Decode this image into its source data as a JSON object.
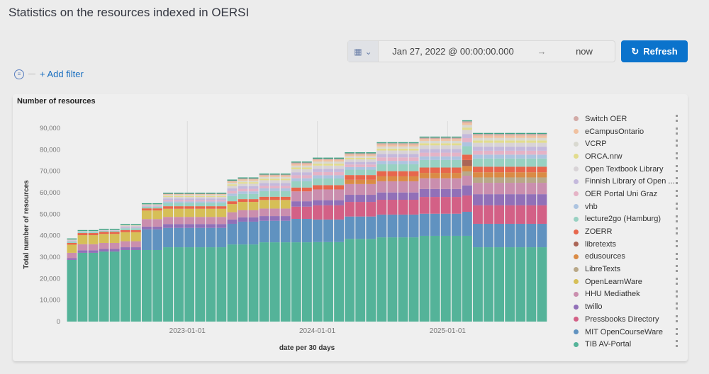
{
  "page": {
    "title": "Statistics on the resources indexed in OERSI"
  },
  "timepicker": {
    "start": "Jan 27, 2022 @ 00:00:00.000",
    "arrow": "→",
    "end": "now",
    "refresh_label": "Refresh",
    "calendar_icon": "calendar-icon",
    "chevron_icon": "chevron-down-icon"
  },
  "filter": {
    "add_label": "+ Add filter"
  },
  "panel": {
    "title": "Number of resources"
  },
  "chart_data": {
    "type": "bar",
    "stacked": true,
    "title": "Number of resources",
    "xlabel": "date per 30 days",
    "ylabel": "Total number of resources",
    "ylim": [
      0,
      90000
    ],
    "y_ticks": [
      0,
      10000,
      20000,
      30000,
      40000,
      50000,
      60000,
      70000,
      80000,
      90000
    ],
    "y_tick_labels": [
      "0",
      "10,000",
      "20,000",
      "30,000",
      "40,000",
      "50,000",
      "60,000",
      "70,000",
      "80,000",
      "90,000"
    ],
    "x_ticks": [
      "2023-01-01",
      "2024-01-01",
      "2025-01-01"
    ],
    "x_interval": "30 days",
    "x_start": "2022-01-27",
    "grid": "vertical at x ticks",
    "legend": "right",
    "series": [
      {
        "name": "TIB AV-Portal",
        "color": "#54b399",
        "values": [
          28700,
          32000,
          32000,
          32600,
          32600,
          33300,
          33300,
          33300,
          33300,
          34600,
          34600,
          34600,
          34600,
          34600,
          34600,
          35900,
          35900,
          35900,
          36900,
          36900,
          36900,
          36900,
          36900,
          37000,
          37000,
          37000,
          38500,
          38500,
          38500,
          39200,
          39200,
          39200,
          39200,
          39900,
          39900,
          39900,
          39900,
          39900,
          34600,
          34600,
          34600,
          34600,
          34600,
          34600,
          34600
        ]
      },
      {
        "name": "MIT OpenCourseWare",
        "color": "#6092c0",
        "values": [
          0,
          0,
          0,
          0,
          0,
          0,
          0,
          9600,
          9600,
          9000,
          9000,
          9000,
          9000,
          9000,
          9000,
          9600,
          10600,
          10600,
          10000,
          10000,
          10000,
          10900,
          10900,
          10500,
          10500,
          10500,
          10400,
          10400,
          10400,
          10600,
          10600,
          10600,
          10600,
          10300,
          10300,
          10300,
          10300,
          11200,
          10900,
          10900,
          10900,
          10900,
          10900,
          10900,
          10900
        ]
      },
      {
        "name": "Pressbooks Directory",
        "color": "#d36086",
        "values": [
          0,
          0,
          0,
          0,
          0,
          0,
          0,
          0,
          0,
          0,
          0,
          0,
          0,
          0,
          0,
          0,
          0,
          0,
          0,
          0,
          0,
          5700,
          5700,
          6600,
          6600,
          6600,
          6800,
          6800,
          6800,
          6900,
          6900,
          6900,
          6900,
          7800,
          7800,
          7800,
          7800,
          7600,
          8600,
          8600,
          8600,
          8600,
          8600,
          8600,
          8600
        ]
      },
      {
        "name": "twillo",
        "color": "#9170b8",
        "values": [
          800,
          1200,
          1200,
          1200,
          1200,
          1300,
          1300,
          1300,
          1300,
          1800,
          1800,
          1800,
          1800,
          1800,
          1800,
          2000,
          2000,
          2000,
          2200,
          2200,
          2200,
          2500,
          2500,
          2400,
          2400,
          2400,
          3300,
          3300,
          3300,
          3400,
          3400,
          3400,
          3400,
          3700,
          3700,
          3700,
          3700,
          4700,
          5200,
          5200,
          5200,
          5200,
          5200,
          5200,
          5200
        ]
      },
      {
        "name": "HHU Mediathek",
        "color": "#ca8eae",
        "values": [
          2500,
          2800,
          2800,
          2800,
          2800,
          2800,
          2800,
          3500,
          3500,
          3300,
          3300,
          3300,
          3300,
          3300,
          3300,
          3400,
          3400,
          3400,
          3500,
          3500,
          3500,
          4600,
          4600,
          5000,
          5000,
          5000,
          5000,
          5000,
          5000,
          5200,
          5200,
          5200,
          5200,
          5000,
          5000,
          5000,
          5000,
          4500,
          5300,
          5300,
          5300,
          5300,
          5300,
          5300,
          5300
        ]
      },
      {
        "name": "OpenLearnWare",
        "color": "#d6bf57",
        "values": [
          3800,
          4200,
          4200,
          4200,
          4200,
          4200,
          4200,
          4000,
          4000,
          3800,
          3800,
          3800,
          3800,
          3800,
          3800,
          3800,
          3800,
          3800,
          4000,
          4000,
          4000,
          0,
          0,
          0,
          0,
          0,
          0,
          0,
          0,
          0,
          0,
          0,
          0,
          0,
          0,
          0,
          0,
          0,
          0,
          0,
          0,
          0,
          0,
          0,
          0
        ]
      },
      {
        "name": "LibreTexts",
        "color": "#b9a888",
        "values": [
          0,
          0,
          0,
          0,
          0,
          0,
          0,
          0,
          0,
          0,
          0,
          0,
          0,
          0,
          0,
          0,
          0,
          0,
          0,
          0,
          0,
          0,
          0,
          0,
          0,
          0,
          0,
          0,
          0,
          0,
          0,
          0,
          0,
          0,
          0,
          0,
          0,
          2000,
          2500,
          2500,
          2500,
          2500,
          2500,
          2500,
          2500
        ]
      },
      {
        "name": "edusources",
        "color": "#da8b45",
        "values": [
          0,
          0,
          0,
          0,
          0,
          0,
          0,
          0,
          0,
          0,
          0,
          0,
          0,
          0,
          0,
          0,
          0,
          0,
          0,
          0,
          0,
          0,
          0,
          0,
          0,
          0,
          2000,
          2000,
          2000,
          2300,
          2300,
          2300,
          2300,
          2500,
          2500,
          2500,
          2500,
          2500,
          2400,
          2400,
          2400,
          2400,
          2400,
          2400,
          2400
        ]
      },
      {
        "name": "libretexts",
        "color": "#aa6556",
        "values": [
          0,
          0,
          0,
          0,
          0,
          0,
          0,
          0,
          0,
          0,
          0,
          0,
          0,
          0,
          0,
          0,
          0,
          0,
          0,
          0,
          0,
          0,
          0,
          0,
          0,
          0,
          0,
          0,
          0,
          0,
          0,
          0,
          0,
          0,
          0,
          0,
          0,
          2800,
          0,
          0,
          0,
          0,
          0,
          0,
          0
        ]
      },
      {
        "name": "ZOERR",
        "color": "#e7664c",
        "values": [
          800,
          1000,
          1000,
          1000,
          1000,
          1000,
          1000,
          1000,
          1000,
          1200,
          1200,
          1200,
          1200,
          1200,
          1200,
          1300,
          1300,
          1300,
          1500,
          1500,
          1500,
          1800,
          1800,
          2000,
          2000,
          2000,
          2200,
          2200,
          2200,
          2400,
          2400,
          2400,
          2400,
          2500,
          2500,
          2500,
          2500,
          2500,
          2600,
          2600,
          2600,
          2600,
          2600,
          2600,
          2600
        ]
      },
      {
        "name": "lecture2go (Hamburg)",
        "color": "#98d1c2",
        "values": [
          600,
          400,
          400,
          400,
          400,
          800,
          800,
          700,
          700,
          1500,
          1500,
          1500,
          1500,
          1500,
          1500,
          2400,
          2400,
          2400,
          2600,
          2600,
          2600,
          2900,
          2900,
          3100,
          3100,
          3100,
          2500,
          2500,
          2500,
          3200,
          3200,
          3200,
          3200,
          3500,
          3500,
          3500,
          3500,
          3900,
          3800,
          3800,
          3800,
          3800,
          3800,
          3800,
          3800
        ]
      },
      {
        "name": "vhb",
        "color": "#adc4e0",
        "values": [
          200,
          100,
          100,
          100,
          100,
          300,
          300,
          200,
          200,
          700,
          700,
          700,
          700,
          700,
          700,
          1200,
          1200,
          1200,
          1300,
          1300,
          1300,
          1400,
          1400,
          1500,
          1500,
          1500,
          1200,
          1200,
          1200,
          1600,
          1600,
          1600,
          1600,
          1700,
          1700,
          1700,
          1700,
          1900,
          1800,
          1800,
          1800,
          1800,
          1800,
          1800,
          1800
        ]
      },
      {
        "name": "OER Portal Uni Graz",
        "color": "#e5b3c6",
        "values": [
          200,
          100,
          100,
          100,
          100,
          300,
          300,
          300,
          300,
          700,
          700,
          700,
          700,
          700,
          700,
          1200,
          1200,
          1200,
          1200,
          1200,
          1200,
          1400,
          1400,
          1500,
          1500,
          1500,
          1200,
          1200,
          1200,
          1600,
          1600,
          1600,
          1600,
          1700,
          1700,
          1700,
          1700,
          1900,
          1800,
          1800,
          1800,
          1800,
          1800,
          1800,
          1800
        ]
      },
      {
        "name": "Finnish Library of Open ...",
        "color": "#c4b9dc",
        "values": [
          200,
          100,
          100,
          100,
          100,
          300,
          300,
          200,
          200,
          700,
          700,
          700,
          700,
          700,
          700,
          1200,
          1200,
          1200,
          1300,
          1300,
          1300,
          1400,
          1400,
          1500,
          1500,
          1500,
          1200,
          1200,
          1200,
          1600,
          1600,
          1600,
          1600,
          1700,
          1700,
          1700,
          1700,
          1900,
          1900,
          1900,
          1900,
          1900,
          1900,
          1900,
          1900
        ]
      },
      {
        "name": "Open Textbook Library",
        "color": "#d8d3d6",
        "values": [
          200,
          100,
          100,
          100,
          100,
          300,
          300,
          200,
          200,
          700,
          700,
          700,
          700,
          700,
          700,
          1200,
          1200,
          1200,
          1300,
          1300,
          1300,
          1400,
          1400,
          1500,
          1500,
          1500,
          1200,
          1200,
          1200,
          1600,
          1600,
          1600,
          1600,
          1700,
          1700,
          1700,
          1700,
          1900,
          1800,
          1800,
          1800,
          1800,
          1800,
          1800,
          1800
        ]
      },
      {
        "name": "ORCA.nrw",
        "color": "#e2dc8e",
        "values": [
          0,
          0,
          0,
          0,
          0,
          100,
          100,
          100,
          100,
          400,
          400,
          400,
          400,
          400,
          400,
          700,
          700,
          700,
          700,
          700,
          700,
          800,
          800,
          900,
          900,
          900,
          700,
          700,
          700,
          900,
          900,
          900,
          900,
          1000,
          1000,
          1000,
          1000,
          1100,
          1100,
          1100,
          1100,
          1100,
          1100,
          1100,
          1100
        ]
      },
      {
        "name": "VCRP",
        "color": "#d9d9d0",
        "values": [
          100,
          100,
          100,
          100,
          100,
          100,
          100,
          100,
          100,
          500,
          500,
          500,
          500,
          500,
          500,
          700,
          700,
          700,
          800,
          800,
          800,
          900,
          900,
          1000,
          1000,
          1000,
          800,
          800,
          800,
          1000,
          1000,
          1000,
          1000,
          1100,
          1100,
          1100,
          1100,
          1200,
          1200,
          1200,
          1200,
          1200,
          1200,
          1200,
          1200
        ]
      },
      {
        "name": "eCampusOntario",
        "color": "#f0c1a0",
        "values": [
          100,
          0,
          0,
          0,
          0,
          100,
          100,
          100,
          100,
          400,
          400,
          400,
          400,
          400,
          400,
          600,
          600,
          600,
          700,
          700,
          700,
          800,
          800,
          800,
          800,
          800,
          700,
          700,
          700,
          900,
          900,
          900,
          900,
          900,
          900,
          900,
          900,
          1000,
          1100,
          1100,
          1100,
          1100,
          1100,
          1100,
          1100
        ]
      },
      {
        "name": "Switch OER",
        "color": "#d2aaa6",
        "values": [
          0,
          0,
          0,
          0,
          0,
          0,
          0,
          0,
          0,
          200,
          200,
          200,
          200,
          200,
          200,
          400,
          400,
          400,
          400,
          400,
          400,
          600,
          600,
          500,
          500,
          500,
          600,
          600,
          600,
          600,
          600,
          600,
          600,
          600,
          600,
          600,
          600,
          700,
          700,
          700,
          700,
          700,
          700,
          700,
          700
        ]
      }
    ]
  }
}
